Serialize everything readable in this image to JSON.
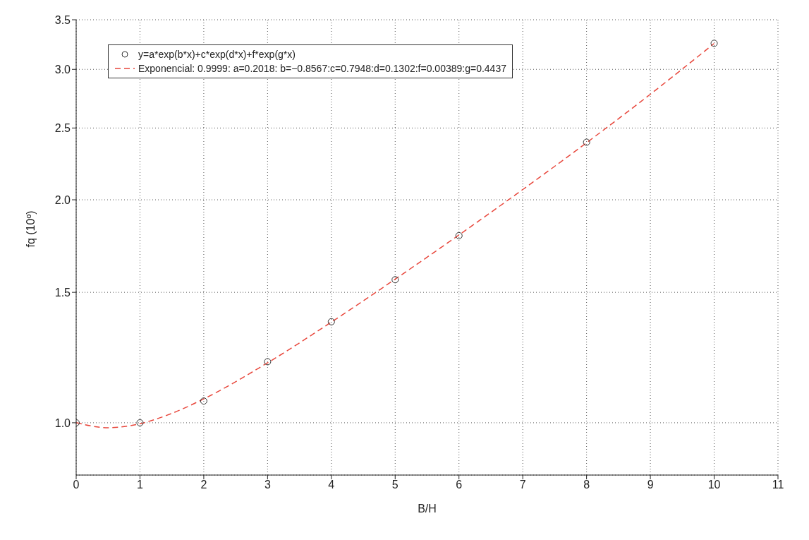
{
  "chart_data": {
    "type": "scatter",
    "xlabel": "B/H",
    "ylabel": "fq (10º)",
    "log": "y",
    "grid": true,
    "legend": "top left",
    "xlim": [
      0,
      11
    ],
    "xticks": [
      0,
      1,
      2,
      3,
      4,
      5,
      6,
      7,
      8,
      9,
      10,
      11
    ],
    "ylim": [
      0.85,
      3.5
    ],
    "yticks": [
      {
        "value": 1,
        "label": "1.0"
      },
      {
        "value": 1.5,
        "label": "1.5"
      },
      {
        "value": 2,
        "label": "2.0"
      },
      {
        "value": 2.5,
        "label": "2.5"
      },
      {
        "value": 3,
        "label": "3.0"
      },
      {
        "value": 3.5,
        "label": "3.5"
      }
    ],
    "series": [
      {
        "name": "y=a*exp(b*x)+c*exp(d*x)+f*exp(g*x)",
        "marker": "circle",
        "color": "#333333",
        "x": [
          0,
          1,
          2,
          3,
          4,
          5,
          6,
          8,
          10
        ],
        "values": [
          1.0,
          1.0,
          1.07,
          1.209,
          1.369,
          1.56,
          1.789,
          2.392,
          3.253
        ]
      },
      {
        "name": "Exponencial: 0.9999: a=0.2018: b=−0.8567:c=0.7948:d=0.1302:f=0.00389:g=0.4437",
        "type": "line",
        "marker": "none",
        "line_style": "dashed",
        "color": "#e8473c",
        "x": [
          0,
          0.5,
          1,
          1.5,
          2,
          3,
          4,
          5,
          6,
          7,
          8,
          9,
          10
        ],
        "values": [
          1.0005,
          0.9847,
          0.9972,
          1.0296,
          1.0771,
          1.2049,
          1.3676,
          1.5627,
          1.7929,
          2.0649,
          2.3881,
          2.7768,
          3.2515
        ]
      }
    ]
  }
}
